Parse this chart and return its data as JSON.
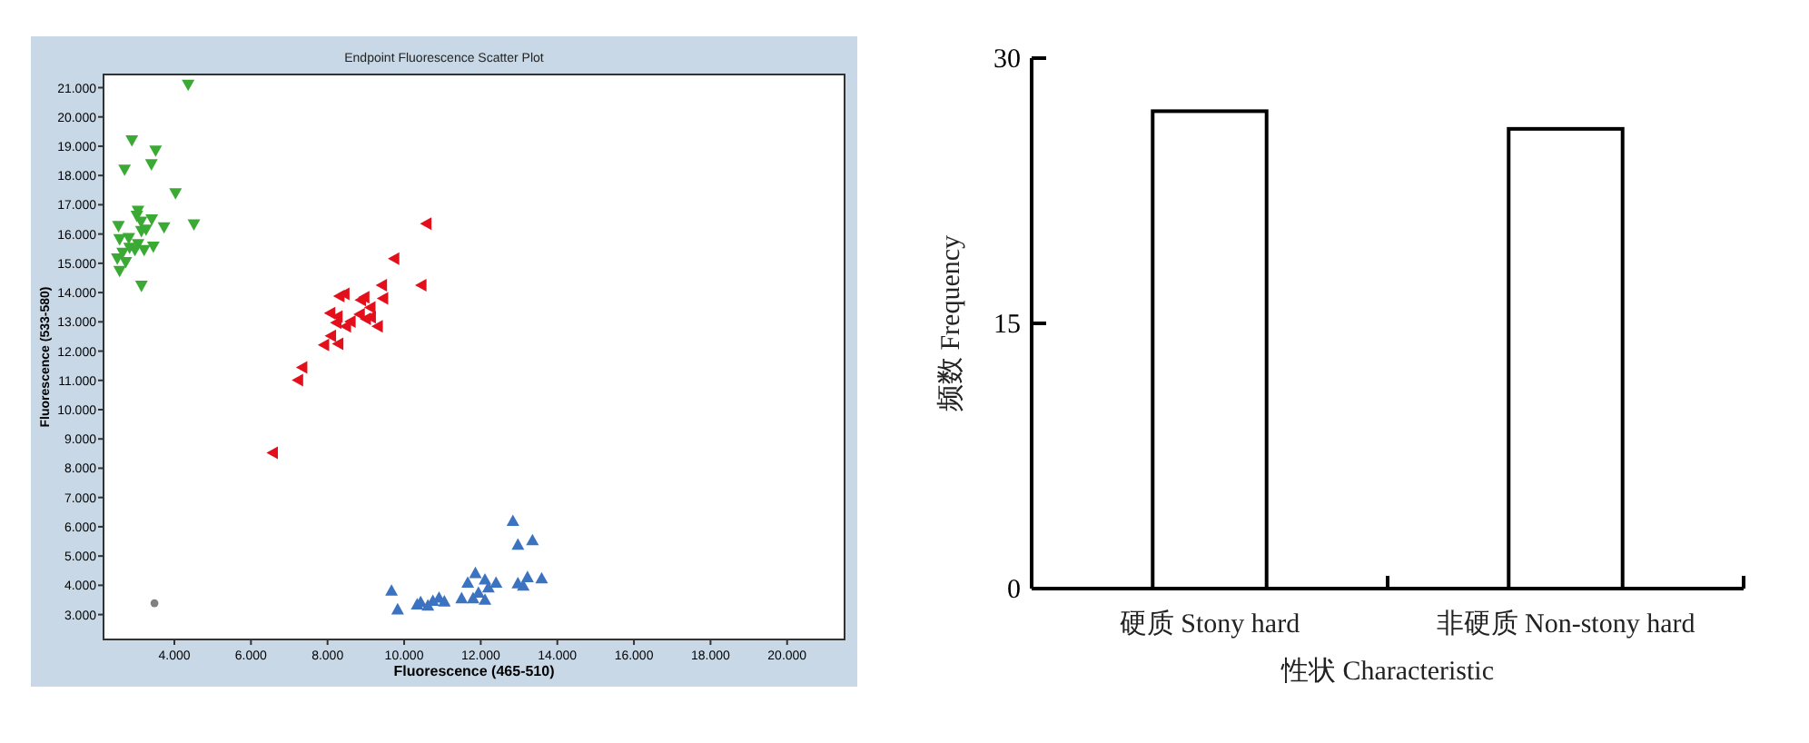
{
  "chart_data": [
    {
      "type": "scatter",
      "title": "Endpoint Fluorescence Scatter Plot",
      "xlabel": "Fluorescence (465-510)",
      "ylabel": "Fluorescence (533-580)",
      "xlim": [
        2150,
        21500
      ],
      "ylim": [
        2150,
        21450
      ],
      "xticks": [
        {
          "value": 4000,
          "label": "4.000"
        },
        {
          "value": 6000,
          "label": "6.000"
        },
        {
          "value": 8000,
          "label": "8.000"
        },
        {
          "value": 10000,
          "label": "10.000"
        },
        {
          "value": 12000,
          "label": "12.000"
        },
        {
          "value": 14000,
          "label": "14.000"
        },
        {
          "value": 16000,
          "label": "16.000"
        },
        {
          "value": 18000,
          "label": "18.000"
        },
        {
          "value": 20000,
          "label": "20.000"
        }
      ],
      "yticks": [
        {
          "value": 3000,
          "label": "3.000"
        },
        {
          "value": 4000,
          "label": "4.000"
        },
        {
          "value": 5000,
          "label": "5.000"
        },
        {
          "value": 6000,
          "label": "6.000"
        },
        {
          "value": 7000,
          "label": "7.000"
        },
        {
          "value": 8000,
          "label": "8.000"
        },
        {
          "value": 9000,
          "label": "9.000"
        },
        {
          "value": 10000,
          "label": "10.000"
        },
        {
          "value": 11000,
          "label": "11.000"
        },
        {
          "value": 12000,
          "label": "12.000"
        },
        {
          "value": 13000,
          "label": "13.000"
        },
        {
          "value": 14000,
          "label": "14.000"
        },
        {
          "value": 15000,
          "label": "15.000"
        },
        {
          "value": 16000,
          "label": "16.000"
        },
        {
          "value": 17000,
          "label": "17.000"
        },
        {
          "value": 18000,
          "label": "18.000"
        },
        {
          "value": 19000,
          "label": "19.000"
        },
        {
          "value": 20000,
          "label": "20.000"
        },
        {
          "value": 21000,
          "label": "21.000"
        }
      ],
      "series": [
        {
          "color": "#3aaa35",
          "marker": "triangle",
          "x": [
            4360,
            2890,
            3510,
            2700,
            3400,
            4030,
            4510,
            2540,
            3730,
            3410,
            3050,
            null,
            3130,
            3020,
            3260,
            3140,
            2570,
            2810,
            3050,
            3450,
            2830,
            2650,
            2970,
            3210,
            2510,
            2730,
            2570,
            3140
          ],
          "values": [
            21100,
            19200,
            18850,
            18200,
            18380,
            17390,
            16330,
            16270,
            16230,
            16500,
            16790,
            null,
            16420,
            16620,
            16150,
            16100,
            15820,
            15860,
            15650,
            15570,
            15530,
            15360,
            15450,
            15450,
            15160,
            15040,
            14740,
            14230
          ]
        },
        {
          "color": "#e3101b",
          "marker": "triangle",
          "x": [
            10580,
            9740,
            9420,
            10450,
            8440,
            8310,
            8960,
            8870,
            9450,
            9120,
            8070,
            8260,
            8840,
            9130,
            9000,
            8230,
            8600,
            8480,
            9310,
            8090,
            8280,
            7910,
            7340,
            7230,
            6570
          ],
          "values": [
            16350,
            15160,
            14250,
            14250,
            13960,
            13880,
            13840,
            13750,
            13800,
            13490,
            13300,
            13180,
            13260,
            13160,
            13100,
            12970,
            13010,
            12850,
            12850,
            12520,
            12250,
            12210,
            11440,
            11010,
            8530
          ]
        },
        {
          "color": "#3b73c0",
          "marker": "triangle",
          "x": [
            12840,
            12970,
            13350,
            11860,
            13590,
            13220,
            12970,
            13110,
            12110,
            12400,
            11660,
            12200,
            9670,
            11940,
            11800,
            12110,
            11500,
            10910,
            10750,
            null,
            11050,
            10430,
            10340,
            10620,
            9830
          ],
          "values": [
            6200,
            5390,
            5540,
            4420,
            4240,
            4280,
            4070,
            3990,
            4200,
            4090,
            4090,
            3930,
            3820,
            3750,
            3560,
            3510,
            3560,
            3580,
            3470,
            null,
            3450,
            3430,
            3350,
            3310,
            3180
          ]
        },
        {
          "color": "#808080",
          "marker": "circle",
          "x": [
            3480
          ],
          "values": [
            3390
          ]
        }
      ]
    },
    {
      "type": "bar",
      "categories": [
        "硬质 Stony hard",
        "非硬质 Non-stony hard"
      ],
      "values": [
        27,
        26
      ],
      "color": "#ffffff",
      "xlabel": "性状 Characteristic",
      "ylabel": "频数 Frequency",
      "ylim": [
        0,
        30
      ],
      "yticks": [
        0,
        15,
        30
      ]
    }
  ]
}
